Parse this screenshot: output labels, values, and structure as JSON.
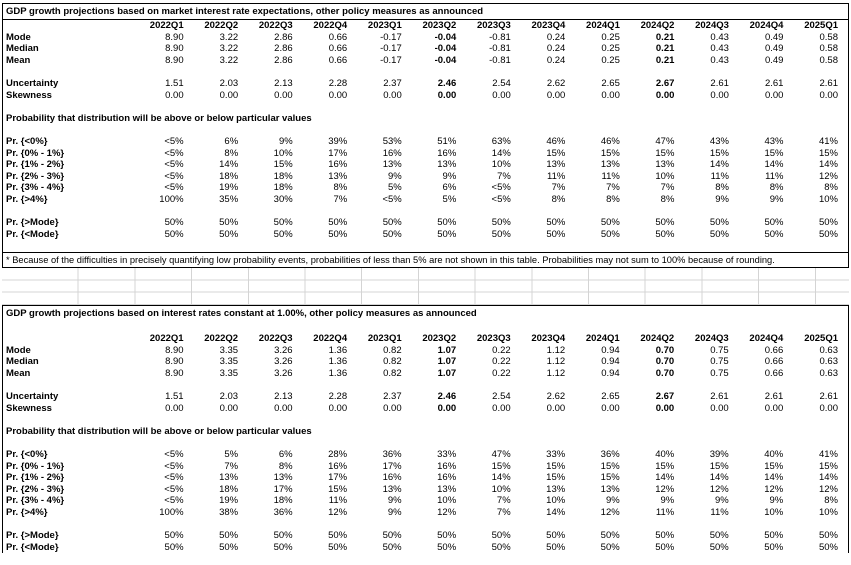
{
  "colors": {
    "table_border": "#000000",
    "gridline": "#d4d4d4",
    "text": "#000000",
    "background": "#ffffff"
  },
  "columns": [
    "2022Q1",
    "2022Q2",
    "2022Q3",
    "2022Q4",
    "2023Q1",
    "2023Q2",
    "2023Q3",
    "2023Q4",
    "2024Q1",
    "2024Q2",
    "2024Q3",
    "2024Q4",
    "2025Q1"
  ],
  "highlight_columns": [
    5,
    9
  ],
  "tables": [
    {
      "title": "GDP growth projections based on market interest rate expectations, other policy measures as announced",
      "blank_after_title": false,
      "rows": [
        {
          "kind": "stat",
          "label": "Mode",
          "values": [
            "8.90",
            "3.22",
            "2.86",
            "0.66",
            "-0.17",
            "-0.04",
            "-0.81",
            "0.24",
            "0.25",
            "0.21",
            "0.43",
            "0.49",
            "0.58"
          ]
        },
        {
          "kind": "stat",
          "label": "Median",
          "values": [
            "8.90",
            "3.22",
            "2.86",
            "0.66",
            "-0.17",
            "-0.04",
            "-0.81",
            "0.24",
            "0.25",
            "0.21",
            "0.43",
            "0.49",
            "0.58"
          ]
        },
        {
          "kind": "stat",
          "label": "Mean",
          "values": [
            "8.90",
            "3.22",
            "2.86",
            "0.66",
            "-0.17",
            "-0.04",
            "-0.81",
            "0.24",
            "0.25",
            "0.21",
            "0.43",
            "0.49",
            "0.58"
          ]
        },
        {
          "kind": "blank"
        },
        {
          "kind": "stat",
          "label": "Uncertainty",
          "values": [
            "1.51",
            "2.03",
            "2.13",
            "2.28",
            "2.37",
            "2.46",
            "2.54",
            "2.62",
            "2.65",
            "2.67",
            "2.61",
            "2.61",
            "2.61"
          ]
        },
        {
          "kind": "stat",
          "label": "Skewness",
          "values": [
            "0.00",
            "0.00",
            "0.00",
            "0.00",
            "0.00",
            "0.00",
            "0.00",
            "0.00",
            "0.00",
            "0.00",
            "0.00",
            "0.00",
            "0.00"
          ]
        },
        {
          "kind": "blank"
        },
        {
          "kind": "heading",
          "label": "Probability that distribution will be above or below particular values"
        },
        {
          "kind": "blank"
        },
        {
          "kind": "prob",
          "label": "Pr. {<0%}",
          "values": [
            "<5%",
            "6%",
            "9%",
            "39%",
            "53%",
            "51%",
            "63%",
            "46%",
            "46%",
            "47%",
            "43%",
            "43%",
            "41%"
          ]
        },
        {
          "kind": "prob",
          "label": "Pr. {0% - 1%}",
          "values": [
            "<5%",
            "8%",
            "10%",
            "17%",
            "16%",
            "16%",
            "14%",
            "15%",
            "15%",
            "15%",
            "15%",
            "15%",
            "15%"
          ]
        },
        {
          "kind": "prob",
          "label": "Pr. {1% - 2%}",
          "values": [
            "<5%",
            "14%",
            "15%",
            "16%",
            "13%",
            "13%",
            "10%",
            "13%",
            "13%",
            "13%",
            "14%",
            "14%",
            "14%"
          ]
        },
        {
          "kind": "prob",
          "label": "Pr. {2% - 3%}",
          "values": [
            "<5%",
            "18%",
            "18%",
            "13%",
            "9%",
            "9%",
            "7%",
            "11%",
            "11%",
            "10%",
            "11%",
            "11%",
            "12%"
          ]
        },
        {
          "kind": "prob",
          "label": "Pr. {3% - 4%}",
          "values": [
            "<5%",
            "19%",
            "18%",
            "8%",
            "5%",
            "6%",
            "<5%",
            "7%",
            "7%",
            "7%",
            "8%",
            "8%",
            "8%"
          ]
        },
        {
          "kind": "prob",
          "label": "Pr. {>4%}",
          "values": [
            "100%",
            "35%",
            "30%",
            "7%",
            "<5%",
            "5%",
            "<5%",
            "8%",
            "8%",
            "8%",
            "9%",
            "9%",
            "10%"
          ]
        },
        {
          "kind": "blank"
        },
        {
          "kind": "prob",
          "label": "Pr. {>Mode}",
          "values": [
            "50%",
            "50%",
            "50%",
            "50%",
            "50%",
            "50%",
            "50%",
            "50%",
            "50%",
            "50%",
            "50%",
            "50%",
            "50%"
          ]
        },
        {
          "kind": "prob",
          "label": "Pr. {<Mode}",
          "values": [
            "50%",
            "50%",
            "50%",
            "50%",
            "50%",
            "50%",
            "50%",
            "50%",
            "50%",
            "50%",
            "50%",
            "50%",
            "50%"
          ]
        },
        {
          "kind": "blank"
        }
      ],
      "footnote": "* Because of the difficulties in precisely quantifying low probability events, probabilities of less than 5% are not shown in this table. Probabilities may not sum to 100% because of rounding."
    },
    {
      "title": "GDP growth projections based on interest rates constant at 1.00%, other policy measures as announced",
      "blank_after_title": true,
      "rows": [
        {
          "kind": "stat",
          "label": "Mode",
          "values": [
            "8.90",
            "3.35",
            "3.26",
            "1.36",
            "0.82",
            "1.07",
            "0.22",
            "1.12",
            "0.94",
            "0.70",
            "0.75",
            "0.66",
            "0.63"
          ]
        },
        {
          "kind": "stat",
          "label": "Median",
          "values": [
            "8.90",
            "3.35",
            "3.26",
            "1.36",
            "0.82",
            "1.07",
            "0.22",
            "1.12",
            "0.94",
            "0.70",
            "0.75",
            "0.66",
            "0.63"
          ]
        },
        {
          "kind": "stat",
          "label": "Mean",
          "values": [
            "8.90",
            "3.35",
            "3.26",
            "1.36",
            "0.82",
            "1.07",
            "0.22",
            "1.12",
            "0.94",
            "0.70",
            "0.75",
            "0.66",
            "0.63"
          ]
        },
        {
          "kind": "blank"
        },
        {
          "kind": "stat",
          "label": "Uncertainty",
          "values": [
            "1.51",
            "2.03",
            "2.13",
            "2.28",
            "2.37",
            "2.46",
            "2.54",
            "2.62",
            "2.65",
            "2.67",
            "2.61",
            "2.61",
            "2.61"
          ]
        },
        {
          "kind": "stat",
          "label": "Skewness",
          "values": [
            "0.00",
            "0.00",
            "0.00",
            "0.00",
            "0.00",
            "0.00",
            "0.00",
            "0.00",
            "0.00",
            "0.00",
            "0.00",
            "0.00",
            "0.00"
          ]
        },
        {
          "kind": "blank"
        },
        {
          "kind": "heading",
          "label": "Probability that distribution will be above or below particular values"
        },
        {
          "kind": "blank"
        },
        {
          "kind": "prob",
          "label": "Pr. {<0%}",
          "values": [
            "<5%",
            "5%",
            "6%",
            "28%",
            "36%",
            "33%",
            "47%",
            "33%",
            "36%",
            "40%",
            "39%",
            "40%",
            "41%"
          ]
        },
        {
          "kind": "prob",
          "label": "Pr. {0% - 1%}",
          "values": [
            "<5%",
            "7%",
            "8%",
            "16%",
            "17%",
            "16%",
            "15%",
            "15%",
            "15%",
            "15%",
            "15%",
            "15%",
            "15%"
          ]
        },
        {
          "kind": "prob",
          "label": "Pr. {1% - 2%}",
          "values": [
            "<5%",
            "13%",
            "13%",
            "17%",
            "16%",
            "16%",
            "14%",
            "15%",
            "15%",
            "14%",
            "14%",
            "14%",
            "14%"
          ]
        },
        {
          "kind": "prob",
          "label": "Pr. {2% - 3%}",
          "values": [
            "<5%",
            "18%",
            "17%",
            "15%",
            "13%",
            "13%",
            "10%",
            "13%",
            "13%",
            "12%",
            "12%",
            "12%",
            "12%"
          ]
        },
        {
          "kind": "prob",
          "label": "Pr. {3% - 4%}",
          "values": [
            "<5%",
            "19%",
            "18%",
            "11%",
            "9%",
            "10%",
            "7%",
            "10%",
            "9%",
            "9%",
            "9%",
            "9%",
            "8%"
          ]
        },
        {
          "kind": "prob",
          "label": "Pr. {>4%}",
          "values": [
            "100%",
            "38%",
            "36%",
            "12%",
            "9%",
            "12%",
            "7%",
            "14%",
            "12%",
            "11%",
            "11%",
            "10%",
            "10%"
          ]
        },
        {
          "kind": "blank"
        },
        {
          "kind": "prob",
          "label": "Pr. {>Mode}",
          "values": [
            "50%",
            "50%",
            "50%",
            "50%",
            "50%",
            "50%",
            "50%",
            "50%",
            "50%",
            "50%",
            "50%",
            "50%",
            "50%"
          ]
        },
        {
          "kind": "prob",
          "label": "Pr. {<Mode}",
          "values": [
            "50%",
            "50%",
            "50%",
            "50%",
            "50%",
            "50%",
            "50%",
            "50%",
            "50%",
            "50%",
            "50%",
            "50%",
            "50%"
          ]
        }
      ],
      "footnote": ""
    }
  ]
}
